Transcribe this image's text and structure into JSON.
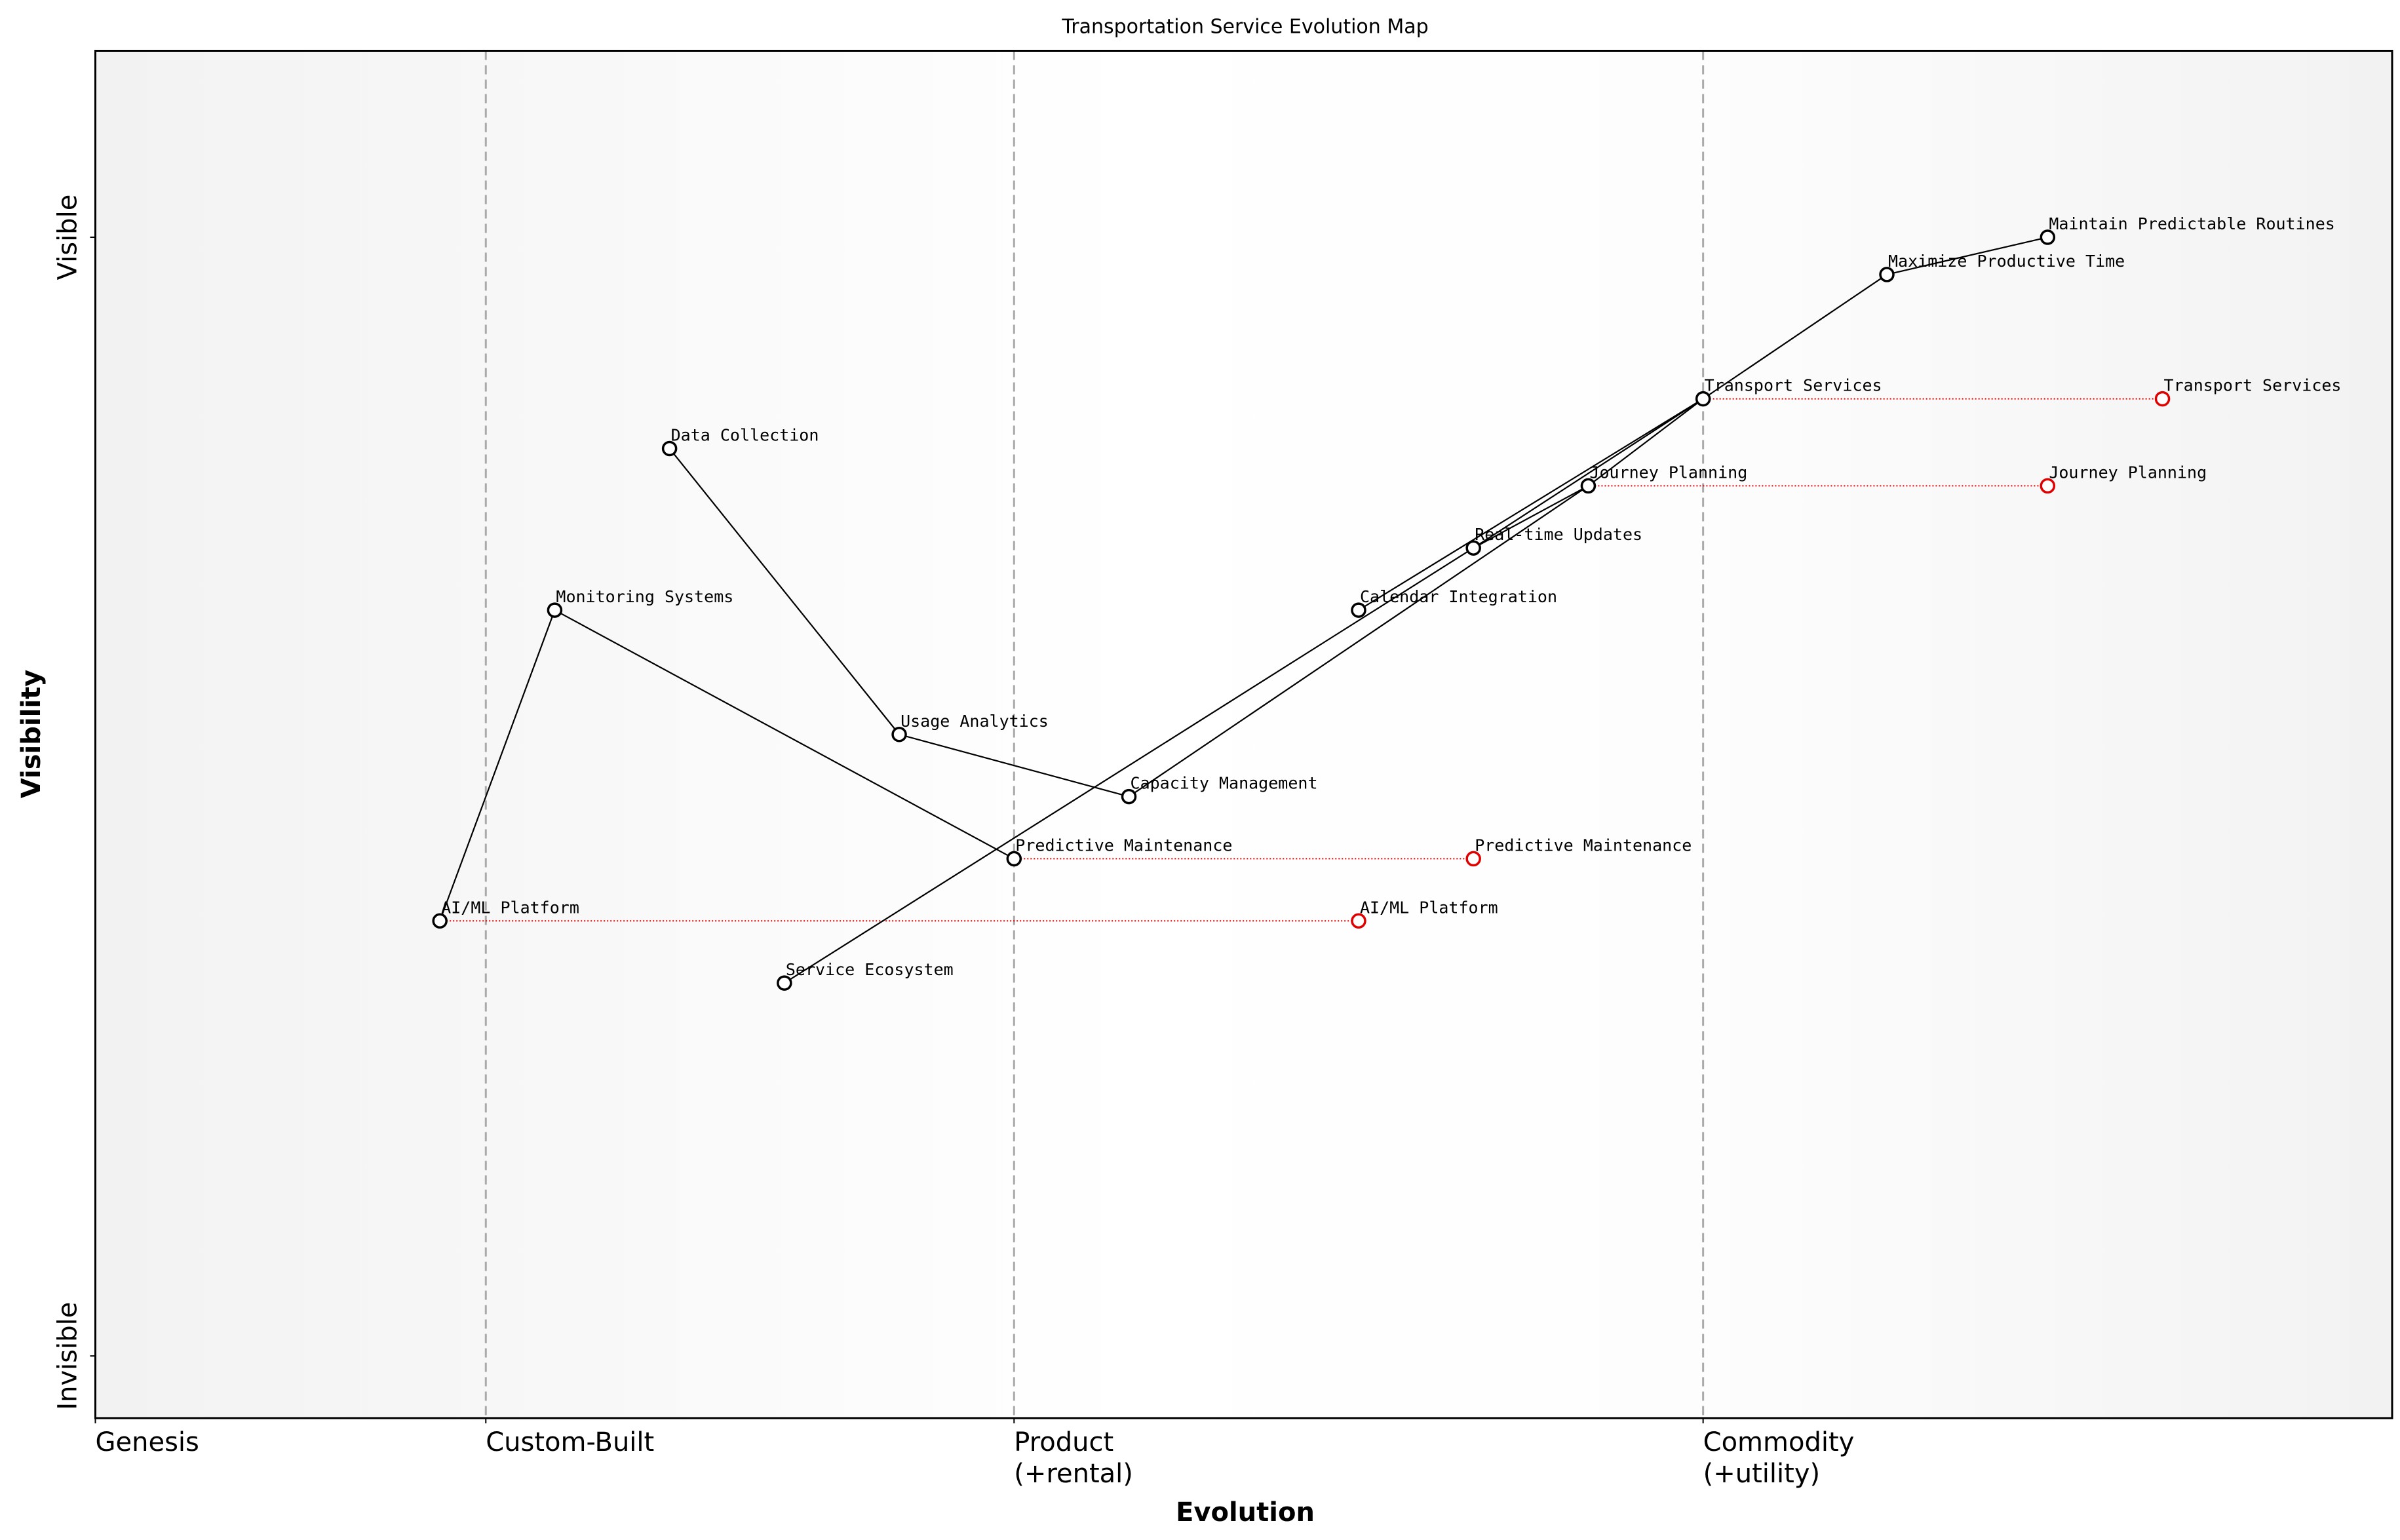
{
  "chart_data": {
    "type": "wardley",
    "title": "Transportation Service Evolution Map",
    "xlabel": "Evolution",
    "ylabel": "Visibility",
    "xlim": [
      0,
      1
    ],
    "ylim": [
      0,
      1.1
    ],
    "xticks": [
      {
        "value": 0,
        "label": "Genesis"
      },
      {
        "value": 0.17,
        "label": "Custom-Built"
      },
      {
        "value": 0.4,
        "label": "Product\n(+rental)"
      },
      {
        "value": 0.7,
        "label": "Commodity\n(+utility)"
      }
    ],
    "yticks": [
      {
        "value": 0.05,
        "label": "Invisible"
      },
      {
        "value": 0.95,
        "label": "Visible"
      }
    ],
    "grid": true,
    "color": "#000000",
    "evolution_color": "#e00000",
    "components": [
      {
        "name": "Maintain Predictable Routines",
        "x": 0.85,
        "y": 0.95
      },
      {
        "name": "Maximize Productive Time",
        "x": 0.78,
        "y": 0.92
      },
      {
        "name": "Transport Services",
        "x": 0.7,
        "y": 0.82
      },
      {
        "name": "Journey Planning",
        "x": 0.65,
        "y": 0.75
      },
      {
        "name": "Real-time Updates",
        "x": 0.6,
        "y": 0.7
      },
      {
        "name": "Calendar Integration",
        "x": 0.55,
        "y": 0.65
      },
      {
        "name": "Data Collection",
        "x": 0.25,
        "y": 0.78
      },
      {
        "name": "Monitoring Systems",
        "x": 0.2,
        "y": 0.65
      },
      {
        "name": "Usage Analytics",
        "x": 0.35,
        "y": 0.55
      },
      {
        "name": "Capacity Management",
        "x": 0.45,
        "y": 0.5
      },
      {
        "name": "Predictive Maintenance",
        "x": 0.4,
        "y": 0.45
      },
      {
        "name": "AI/ML Platform",
        "x": 0.15,
        "y": 0.4
      },
      {
        "name": "Service Ecosystem",
        "x": 0.3,
        "y": 0.35
      }
    ],
    "links": [
      [
        0,
        1
      ],
      [
        1,
        2
      ],
      [
        2,
        3
      ],
      [
        2,
        4
      ],
      [
        2,
        5
      ],
      [
        3,
        4
      ],
      [
        3,
        9
      ],
      [
        4,
        12
      ],
      [
        9,
        8
      ],
      [
        8,
        6
      ],
      [
        10,
        7
      ],
      [
        7,
        11
      ]
    ],
    "evolutions": [
      {
        "component": 2,
        "x": 0.9
      },
      {
        "component": 3,
        "x": 0.85
      },
      {
        "component": 10,
        "x": 0.6
      },
      {
        "component": 11,
        "x": 0.55
      }
    ]
  }
}
